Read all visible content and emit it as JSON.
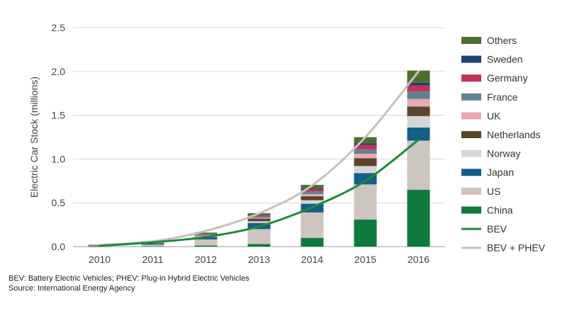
{
  "chart_data": {
    "type": "bar",
    "stacked": true,
    "ylabel": "Electric Car Stock (millions)",
    "ylim": [
      0,
      2.5
    ],
    "yticks": [
      "0.0",
      "0.5",
      "1.0",
      "1.5",
      "2.0",
      "2.5"
    ],
    "grid": true,
    "legend_position": "right",
    "categories": [
      "2010",
      "2011",
      "2012",
      "2013",
      "2014",
      "2015",
      "2016"
    ],
    "series": [
      {
        "name": "China",
        "color": "#107a3c",
        "values": [
          0.001,
          0.005,
          0.012,
          0.03,
          0.1,
          0.31,
          0.65
        ]
      },
      {
        "name": "US",
        "color": "#cdc6be",
        "values": [
          0.004,
          0.018,
          0.07,
          0.17,
          0.29,
          0.4,
          0.56
        ]
      },
      {
        "name": "Japan",
        "color": "#145e8a",
        "values": [
          0.004,
          0.014,
          0.028,
          0.07,
          0.1,
          0.13,
          0.15
        ]
      },
      {
        "name": "Norway",
        "color": "#d6d6d6",
        "values": [
          0.003,
          0.005,
          0.01,
          0.02,
          0.04,
          0.08,
          0.13
        ]
      },
      {
        "name": "Netherlands",
        "color": "#59452e",
        "values": [
          0.001,
          0.002,
          0.007,
          0.03,
          0.045,
          0.09,
          0.11
        ]
      },
      {
        "name": "UK",
        "color": "#e8aab0",
        "values": [
          0.001,
          0.002,
          0.006,
          0.01,
          0.025,
          0.05,
          0.085
        ]
      },
      {
        "name": "France",
        "color": "#5f8194",
        "values": [
          0.001,
          0.003,
          0.007,
          0.015,
          0.03,
          0.05,
          0.085
        ]
      },
      {
        "name": "Germany",
        "color": "#c23355",
        "values": [
          0.001,
          0.002,
          0.006,
          0.012,
          0.025,
          0.05,
          0.07
        ]
      },
      {
        "name": "Sweden",
        "color": "#1f3f76",
        "values": [
          0.0,
          0.001,
          0.002,
          0.005,
          0.01,
          0.02,
          0.03
        ]
      },
      {
        "name": "Others",
        "color": "#49702f",
        "values": [
          0.004,
          0.008,
          0.012,
          0.02,
          0.04,
          0.07,
          0.14
        ]
      }
    ],
    "lines": [
      {
        "name": "BEV",
        "color": "#1f8a3c",
        "values": [
          0.01,
          0.05,
          0.11,
          0.23,
          0.45,
          0.75,
          1.22
        ]
      },
      {
        "name": "BEV + PHEV",
        "color": "#c9c1b9",
        "values": [
          0.017,
          0.06,
          0.18,
          0.38,
          0.7,
          1.25,
          2.0
        ]
      }
    ],
    "legend_order": [
      "Others",
      "Sweden",
      "Germany",
      "France",
      "UK",
      "Netherlands",
      "Norway",
      "Japan",
      "US",
      "China",
      "BEV",
      "BEV + PHEV"
    ]
  },
  "footnotes": {
    "line1": "BEV: Battery Electric Vehicles; PHEV: Plug-in Hybrid Electric Vehicles",
    "line2": "Source: International Energy Agency"
  }
}
